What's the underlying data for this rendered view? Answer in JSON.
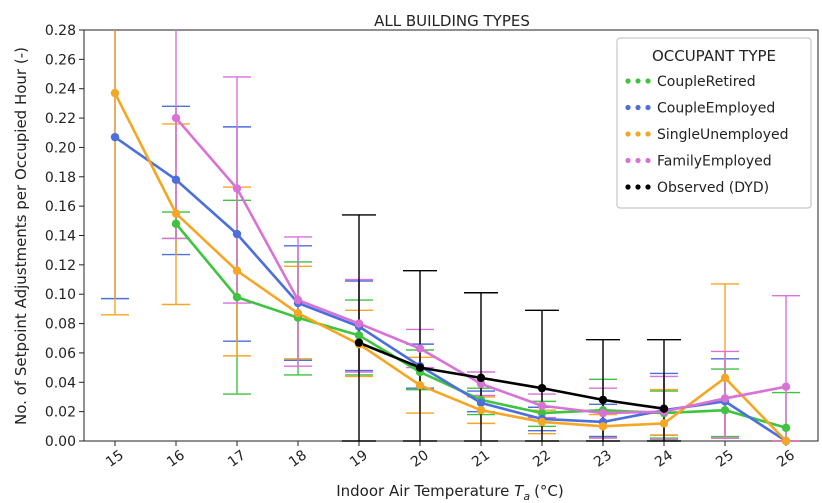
{
  "chart_data": {
    "type": "line",
    "title": "ALL BUILDING TYPES",
    "xlabel": "Indoor Air Temperature",
    "xlabel_symbol": "T",
    "xlabel_subscript": "a",
    "xlabel_unit": "(°C)",
    "ylabel": "No. of Setpoint Adjustments per Occupied Hour (-)",
    "x": [
      "15",
      "16",
      "17",
      "18",
      "19",
      "20",
      "21",
      "22",
      "23",
      "24",
      "25",
      "26"
    ],
    "ylim": [
      0,
      0.28
    ],
    "yticks": [
      "0.00",
      "0.02",
      "0.04",
      "0.06",
      "0.08",
      "0.10",
      "0.12",
      "0.14",
      "0.16",
      "0.18",
      "0.20",
      "0.22",
      "0.24",
      "0.26",
      "0.28"
    ],
    "grid": false,
    "legend": {
      "title": "OCCUPANT TYPE",
      "placement": "top-right"
    },
    "series": [
      {
        "name": "CoupleRetired",
        "color": "#3ec43e",
        "values": [
          null,
          0.148,
          0.098,
          0.084,
          0.072,
          0.047,
          0.028,
          0.019,
          0.021,
          0.019,
          0.021,
          0.009
        ],
        "lower": [
          null,
          0.138,
          0.032,
          0.045,
          0.045,
          0.035,
          0.018,
          0.01,
          0.003,
          0.002,
          0.003,
          0.0
        ],
        "upper": [
          null,
          0.156,
          0.164,
          0.122,
          0.096,
          0.062,
          0.036,
          0.027,
          0.042,
          0.034,
          0.049,
          0.033
        ]
      },
      {
        "name": "CoupleEmployed",
        "color": "#4c6fdc",
        "values": [
          0.207,
          0.178,
          0.141,
          0.094,
          0.078,
          0.051,
          0.026,
          0.015,
          0.013,
          0.021,
          0.027,
          0.0
        ],
        "lower": [
          0.097,
          0.127,
          0.068,
          0.055,
          0.048,
          0.036,
          0.02,
          0.007,
          0.003,
          0.004,
          0.002,
          0.0
        ],
        "upper": [
          0.285,
          0.228,
          0.214,
          0.133,
          0.109,
          0.066,
          0.034,
          0.023,
          0.025,
          0.046,
          0.056,
          0.0
        ]
      },
      {
        "name": "SingleUnemployed",
        "color": "#f5a623",
        "values": [
          0.237,
          0.155,
          0.116,
          0.087,
          0.066,
          0.038,
          0.021,
          0.013,
          0.01,
          0.012,
          0.043,
          0.0
        ],
        "lower": [
          0.086,
          0.093,
          0.058,
          0.056,
          0.044,
          0.019,
          0.012,
          0.005,
          0.002,
          0.004,
          0.002,
          0.0
        ],
        "upper": [
          0.285,
          0.216,
          0.173,
          0.119,
          0.089,
          0.057,
          0.03,
          0.021,
          0.018,
          0.035,
          0.107,
          0.0
        ]
      },
      {
        "name": "FamilyEmployed",
        "color": "#d972d6",
        "values": [
          null,
          0.22,
          0.172,
          0.096,
          0.08,
          0.063,
          0.039,
          0.024,
          0.019,
          0.02,
          0.029,
          0.037
        ],
        "lower": [
          null,
          0.138,
          0.094,
          0.051,
          0.047,
          0.05,
          0.031,
          0.016,
          0.002,
          0.001,
          0.002,
          0.0
        ],
        "upper": [
          null,
          0.285,
          0.248,
          0.139,
          0.11,
          0.076,
          0.047,
          0.032,
          0.036,
          0.044,
          0.061,
          0.099
        ]
      },
      {
        "name": "Observed (DYD)",
        "color": "#000000",
        "values": [
          null,
          null,
          null,
          null,
          0.067,
          0.05,
          0.043,
          0.036,
          0.028,
          0.022,
          null,
          null
        ],
        "lower": [
          null,
          null,
          null,
          null,
          0.0,
          0.0,
          0.0,
          0.0,
          0.0,
          0.0,
          null,
          null
        ],
        "upper": [
          null,
          null,
          null,
          null,
          0.154,
          0.116,
          0.101,
          0.089,
          0.069,
          0.069,
          null,
          null
        ]
      }
    ]
  }
}
